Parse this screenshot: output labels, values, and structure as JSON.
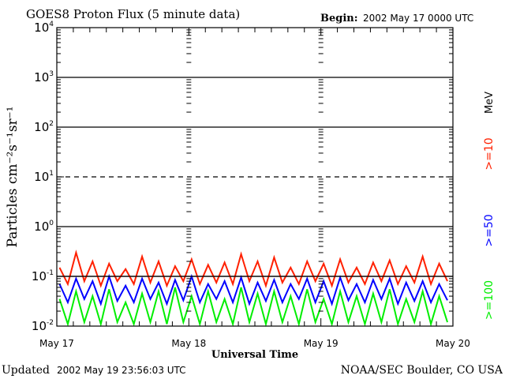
{
  "chart_data": {
    "type": "line",
    "title": "GOES8 Proton Flux (5 minute data)",
    "begin_label": "Begin:",
    "begin_value": "2002 May 17 0000 UTC",
    "ylabel": "Particles cm⁻²s⁻¹sr⁻¹",
    "xlabel": "Universal Time",
    "yscale": "log",
    "ylim": [
      0.01,
      10000
    ],
    "ytick_labels": [
      {
        "base": "10",
        "exp": "4"
      },
      {
        "base": "10",
        "exp": "3"
      },
      {
        "base": "10",
        "exp": "2"
      },
      {
        "base": "10",
        "exp": "1"
      },
      {
        "base": "10",
        "exp": "0"
      },
      {
        "base": "10",
        "exp": "-1"
      },
      {
        "base": "10",
        "exp": "-2"
      }
    ],
    "xlim_hours": [
      0,
      72
    ],
    "xtick_labels": [
      "May 17",
      "May 18",
      "May 19",
      "May 20"
    ],
    "legend_unit": "MeV",
    "x_hours_step": 1.5,
    "series": [
      {
        "name": ">=10",
        "color": "#ff2000",
        "values": [
          0.15,
          0.07,
          0.3,
          0.08,
          0.2,
          0.065,
          0.18,
          0.08,
          0.14,
          0.07,
          0.25,
          0.075,
          0.2,
          0.065,
          0.16,
          0.08,
          0.22,
          0.07,
          0.17,
          0.075,
          0.19,
          0.07,
          0.28,
          0.08,
          0.2,
          0.065,
          0.24,
          0.075,
          0.15,
          0.07,
          0.2,
          0.08,
          0.18,
          0.065,
          0.22,
          0.075,
          0.15,
          0.07,
          0.19,
          0.08,
          0.21,
          0.07,
          0.16,
          0.075,
          0.25,
          0.07,
          0.18,
          0.08
        ]
      },
      {
        "name": ">=50",
        "color": "#0000ff",
        "values": [
          0.07,
          0.03,
          0.09,
          0.035,
          0.08,
          0.028,
          0.1,
          0.032,
          0.065,
          0.03,
          0.09,
          0.035,
          0.075,
          0.028,
          0.085,
          0.033,
          0.1,
          0.03,
          0.07,
          0.035,
          0.08,
          0.03,
          0.095,
          0.028,
          0.075,
          0.032,
          0.085,
          0.03,
          0.07,
          0.035,
          0.09,
          0.03,
          0.08,
          0.028,
          0.095,
          0.033,
          0.07,
          0.03,
          0.085,
          0.035,
          0.09,
          0.028,
          0.075,
          0.032,
          0.08,
          0.03,
          0.07,
          0.033
        ]
      },
      {
        "name": ">=100",
        "color": "#00ee00",
        "values": [
          0.035,
          0.011,
          0.05,
          0.012,
          0.04,
          0.011,
          0.055,
          0.012,
          0.03,
          0.011,
          0.045,
          0.012,
          0.05,
          0.011,
          0.06,
          0.012,
          0.04,
          0.011,
          0.05,
          0.012,
          0.035,
          0.011,
          0.06,
          0.012,
          0.045,
          0.011,
          0.05,
          0.012,
          0.04,
          0.011,
          0.055,
          0.012,
          0.035,
          0.011,
          0.05,
          0.012,
          0.04,
          0.011,
          0.045,
          0.012,
          0.055,
          0.011,
          0.035,
          0.012,
          0.05,
          0.011,
          0.04,
          0.012
        ]
      }
    ]
  },
  "footer": {
    "updated_label": "Updated",
    "updated_value": "2002 May 19 23:56:03 UTC",
    "credit": "NOAA/SEC Boulder, CO USA"
  }
}
